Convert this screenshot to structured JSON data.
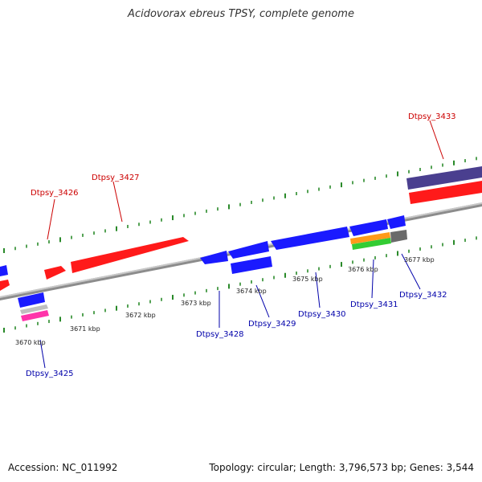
{
  "title": "Acidovorax ebreus TPSY, complete genome",
  "footer": {
    "accession": "Accession: NC_011992",
    "summary": "Topology: circular; Length: 3,796,573 bp; Genes: 3,544"
  },
  "colors": {
    "forward_gene": "#ff1a1a",
    "reverse_gene": "#1a1aff",
    "backbone": "#8c8c8c",
    "tick": "#2a8a2a",
    "label_red": "#cc0000",
    "label_blue": "#0000aa"
  },
  "ticks": [
    {
      "label": "3670 kbp"
    },
    {
      "label": "3671 kbp"
    },
    {
      "label": "3672 kbp"
    },
    {
      "label": "3673 kbp"
    },
    {
      "label": "3674 kbp"
    },
    {
      "label": "3675 kbp"
    },
    {
      "label": "3676 kbp"
    },
    {
      "label": "3677 kbp"
    }
  ],
  "gene_labels": [
    {
      "name": "Dtpsy_3425",
      "strand": "reverse"
    },
    {
      "name": "Dtpsy_3426",
      "strand": "forward"
    },
    {
      "name": "Dtpsy_3427",
      "strand": "forward"
    },
    {
      "name": "Dtpsy_3428",
      "strand": "reverse"
    },
    {
      "name": "Dtpsy_3429",
      "strand": "reverse"
    },
    {
      "name": "Dtpsy_3430",
      "strand": "reverse"
    },
    {
      "name": "Dtpsy_3431",
      "strand": "reverse"
    },
    {
      "name": "Dtpsy_3432",
      "strand": "reverse"
    },
    {
      "name": "Dtpsy_3433",
      "strand": "forward"
    }
  ]
}
